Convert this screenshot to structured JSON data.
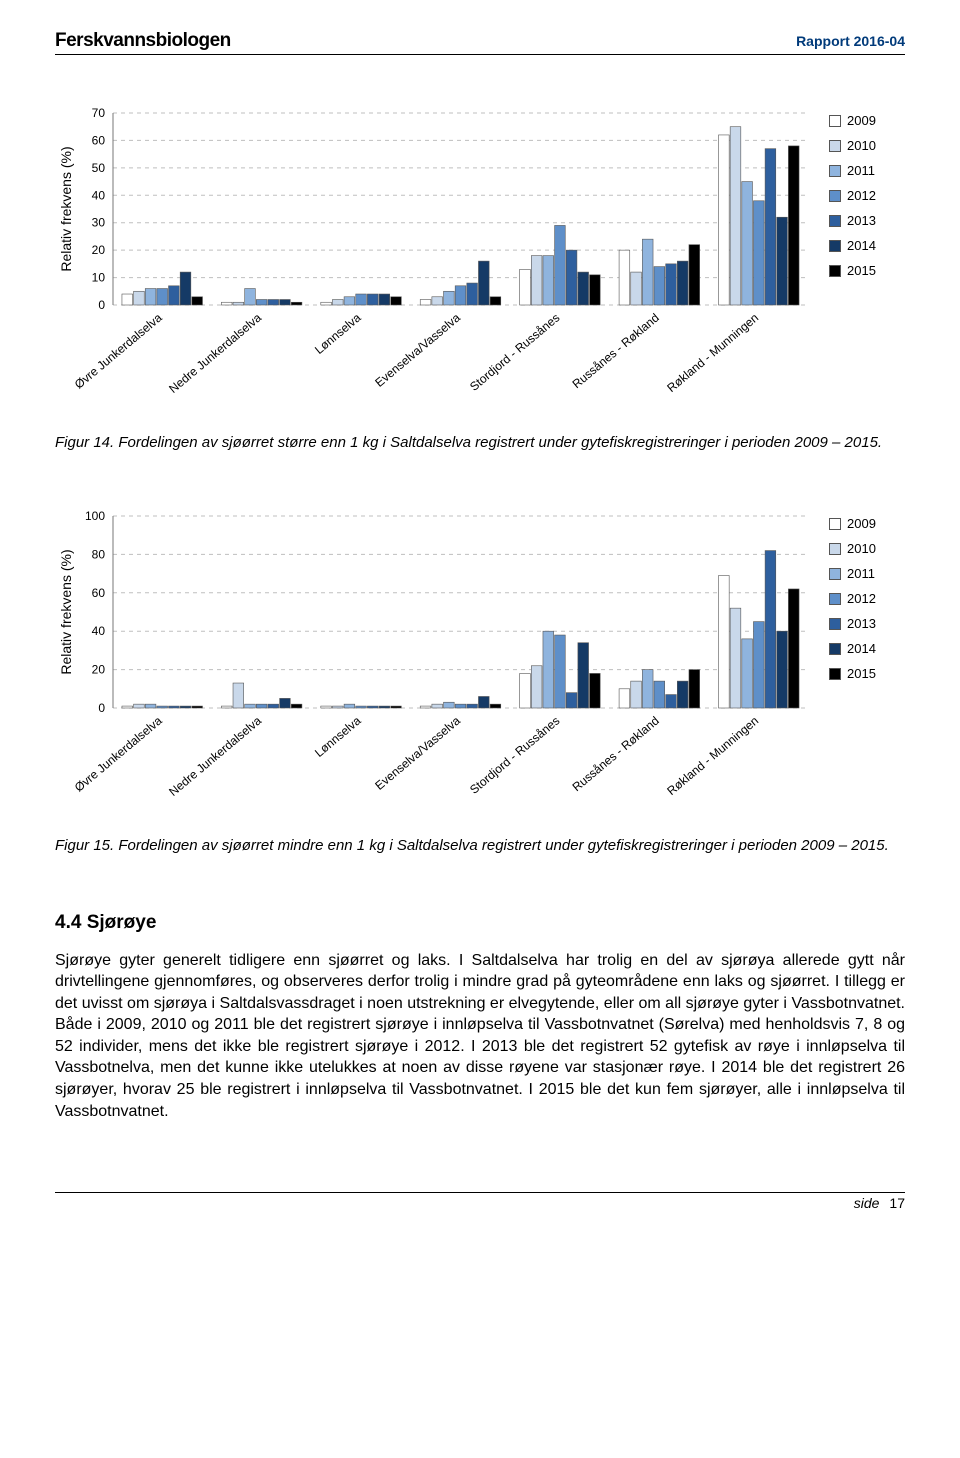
{
  "header": {
    "brand": "Ferskvannsbiologen",
    "report": "Rapport 2016-04"
  },
  "legend_years": [
    "2009",
    "2010",
    "2011",
    "2012",
    "2013",
    "2014",
    "2015"
  ],
  "year_colors": [
    "#ffffff",
    "#c9d8ea",
    "#8fb4de",
    "#5e8fc9",
    "#2e5f9e",
    "#153a66",
    "#000000"
  ],
  "categories": [
    "Øvre Junkerdalselva",
    "Nedre Junkerdalselva",
    "Lønnselva",
    "Evenselva/Vasselva",
    "Stordjord - Russånes",
    "Russånes - Røkland",
    "Røkland - Munningen"
  ],
  "chart1": {
    "ylabel": "Relativ frekvens (%)",
    "ylim": [
      0,
      70
    ],
    "ytick_step": 10,
    "label_fontsize": 14,
    "tick_fontsize": 12,
    "background_color": "#ffffff",
    "grid_color": "#bfbfbf",
    "bar_group_width": 0.82,
    "series": {
      "2009": [
        4,
        1,
        1,
        2,
        13,
        20,
        62
      ],
      "2010": [
        5,
        1,
        2,
        3,
        18,
        12,
        65
      ],
      "2011": [
        6,
        6,
        3,
        5,
        18,
        24,
        45
      ],
      "2012": [
        6,
        2,
        4,
        7,
        29,
        14,
        38
      ],
      "2013": [
        7,
        2,
        4,
        8,
        20,
        15,
        57
      ],
      "2014": [
        12,
        2,
        4,
        16,
        12,
        16,
        32
      ],
      "2015": [
        3,
        1,
        3,
        3,
        11,
        22,
        58
      ]
    }
  },
  "caption1": {
    "label": "Figur 14.",
    "text": " Fordelingen av sjøørret større enn 1 kg i Saltdalselva registrert under gytefiskregistreringer i perioden 2009 – 2015."
  },
  "chart2": {
    "ylabel": "Relativ frekvens (%)",
    "ylim": [
      0,
      100
    ],
    "ytick_step": 20,
    "label_fontsize": 14,
    "tick_fontsize": 12,
    "background_color": "#ffffff",
    "grid_color": "#bfbfbf",
    "bar_group_width": 0.82,
    "series": {
      "2009": [
        1,
        1,
        1,
        1,
        18,
        10,
        69
      ],
      "2010": [
        2,
        13,
        1,
        2,
        22,
        14,
        52
      ],
      "2011": [
        2,
        2,
        2,
        3,
        40,
        20,
        36
      ],
      "2012": [
        1,
        2,
        1,
        2,
        38,
        14,
        45
      ],
      "2013": [
        1,
        2,
        1,
        2,
        8,
        7,
        82
      ],
      "2014": [
        1,
        5,
        1,
        6,
        34,
        14,
        40
      ],
      "2015": [
        1,
        2,
        1,
        2,
        18,
        20,
        62
      ]
    }
  },
  "caption2": {
    "label": "Figur 15.",
    "text": " Fordelingen av sjøørret mindre enn 1 kg i Saltdalselva registrert under gytefiskregistreringer i perioden 2009 – 2015."
  },
  "section": {
    "heading": "4.4 Sjørøye",
    "body": "Sjørøye gyter generelt tidligere enn sjøørret og laks. I Saltdalselva har trolig en del av sjørøya allerede gytt når drivtellingene gjennomføres, og observeres derfor trolig i mindre grad på gyteområdene enn laks og sjøørret. I tillegg er det uvisst om sjørøya i Saltdalsvassdraget i noen utstrekning er elvegytende, eller om all sjørøye gyter i Vassbotnvatnet. Både i 2009, 2010 og 2011 ble det registrert sjørøye i innløpselva til Vassbotnvatnet (Sørelva) med henholdsvis 7, 8 og 52 individer, mens det ikke ble registrert sjørøye i 2012. I 2013 ble det registrert 52 gytefisk av røye i innløpselva til Vassbotnelva, men det kunne ikke utelukkes at noen av disse røyene var stasjonær røye. I 2014 ble det registrert 26 sjørøyer, hvorav 25 ble registrert i innløpselva til Vassbotnvatnet. I 2015 ble det kun fem sjørøyer, alle i innløpselva til Vassbotnvatnet."
  },
  "footer": {
    "label": "side",
    "page": "17"
  }
}
